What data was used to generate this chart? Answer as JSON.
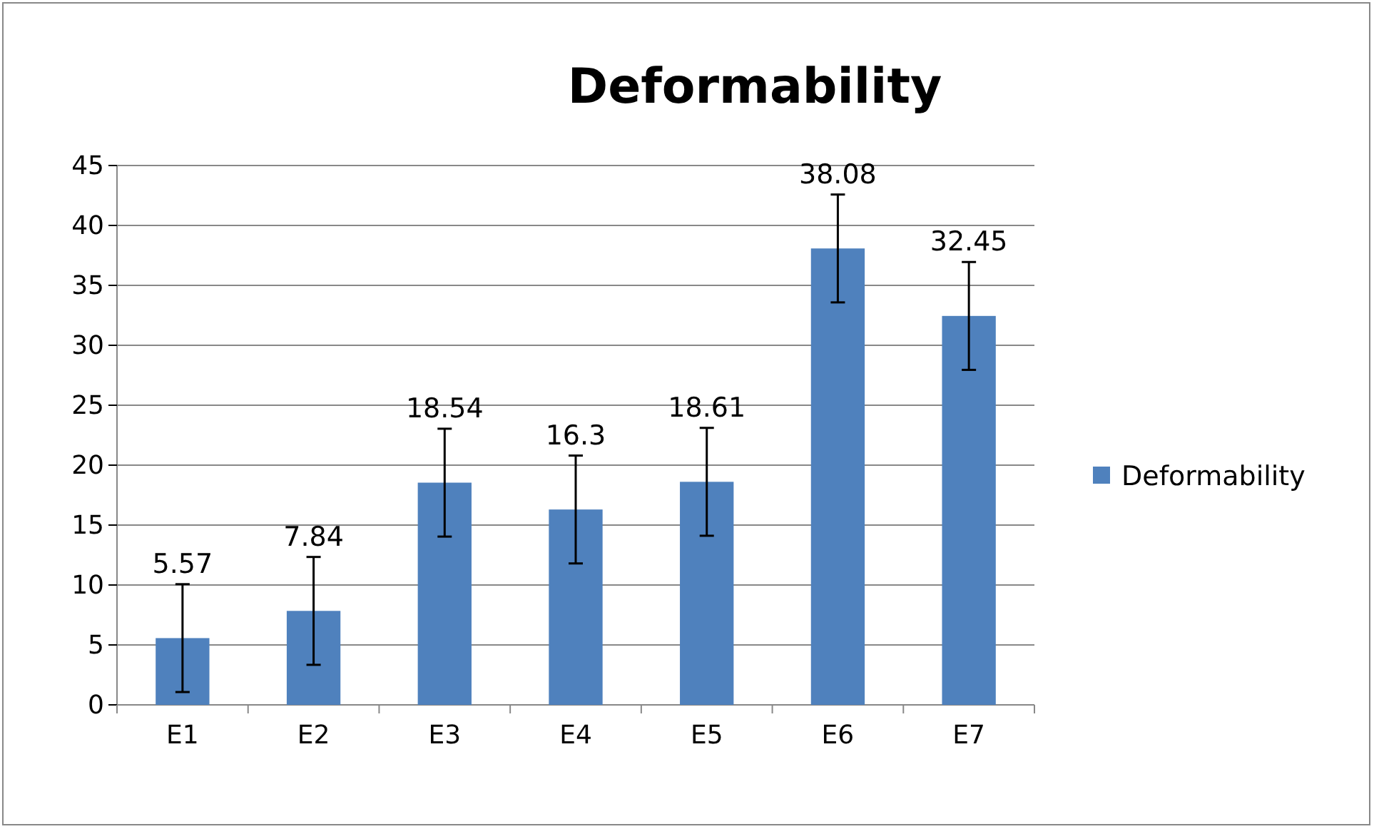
{
  "chart_data": {
    "type": "bar",
    "title": "Deformability",
    "categories": [
      "E1",
      "E2",
      "E3",
      "E4",
      "E5",
      "E6",
      "E7"
    ],
    "series": [
      {
        "name": "Deformability",
        "color": "#4f81bd",
        "values": [
          5.57,
          7.84,
          18.54,
          16.3,
          18.61,
          38.08,
          32.45
        ],
        "errors": [
          4.5,
          4.5,
          4.5,
          4.5,
          4.5,
          4.5,
          4.5
        ]
      }
    ],
    "ylim": [
      0,
      45
    ],
    "yticks": [
      0,
      5,
      10,
      15,
      20,
      25,
      30,
      35,
      40,
      45
    ],
    "grid": "y",
    "legend": "right",
    "data_labels": true
  }
}
